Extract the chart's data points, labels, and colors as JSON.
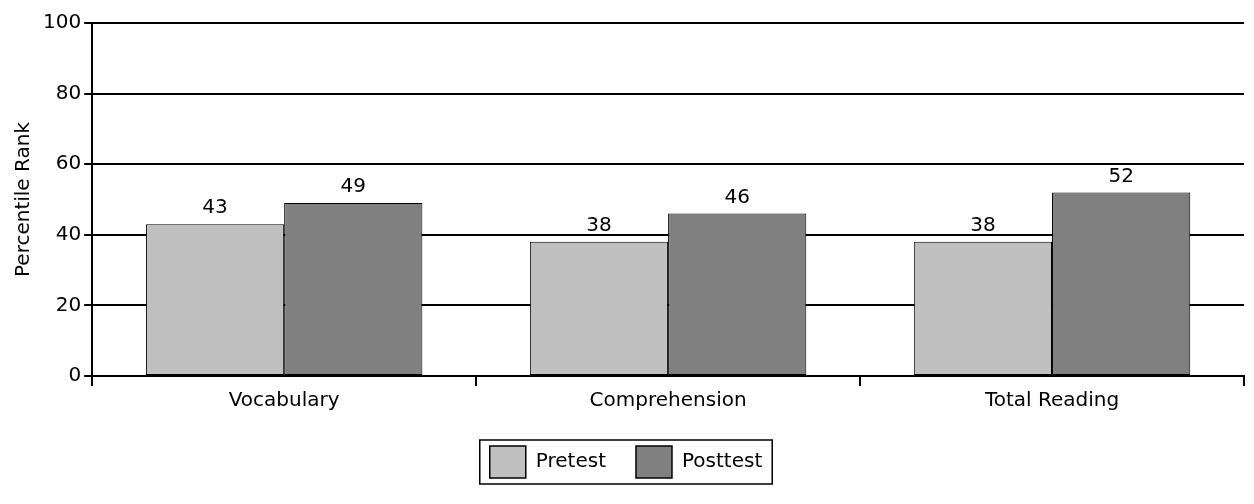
{
  "chart_data": {
    "type": "bar",
    "ylabel": "Percentile Rank",
    "categories": [
      "Vocabulary",
      "Comprehension",
      "Total Reading"
    ],
    "series": [
      {
        "name": "Pretest",
        "color": "#c0c0c0",
        "values": [
          43,
          38,
          38
        ]
      },
      {
        "name": "Posttest",
        "color": "#808080",
        "values": [
          49,
          46,
          52
        ]
      }
    ],
    "ylim": [
      0,
      100
    ],
    "yticks": [
      0,
      20,
      40,
      60,
      80,
      100
    ],
    "grid": "y",
    "legend": "bottom",
    "data_labels": true
  }
}
